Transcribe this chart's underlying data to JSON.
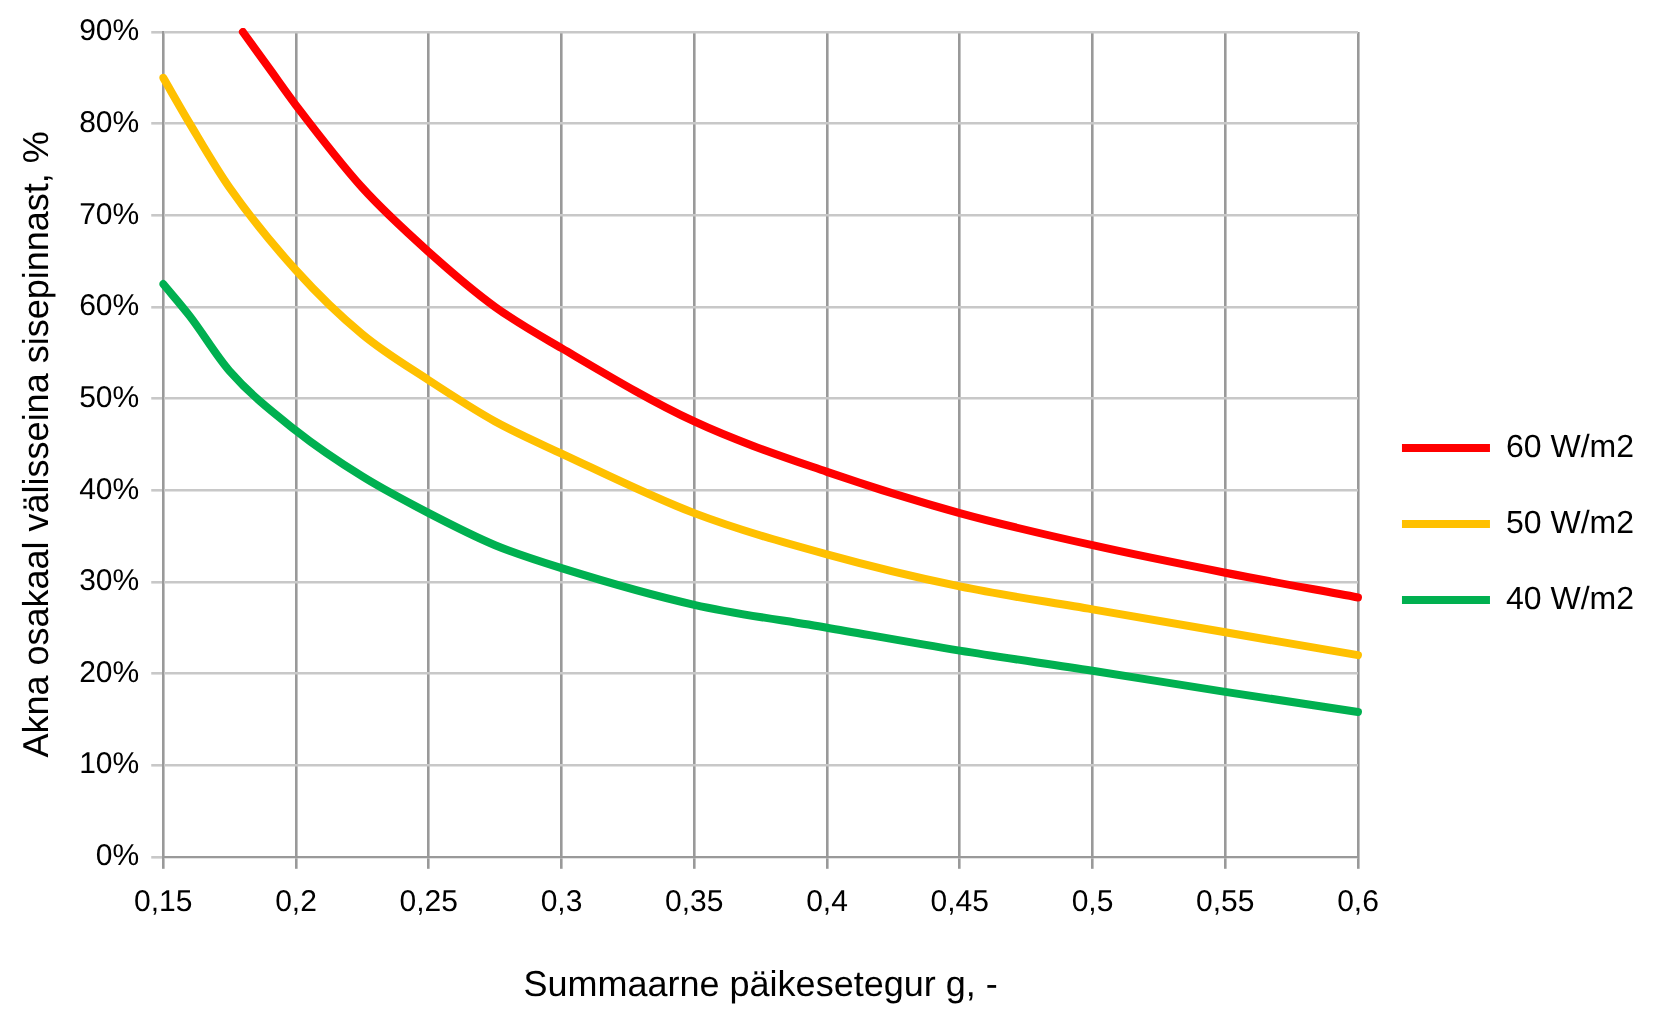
{
  "chart_data": {
    "type": "line",
    "xlabel": "Summaarne päikesetegur g, -",
    "ylabel": "Akna osakaal välisseina sisepinnast, %",
    "xlim": [
      0.15,
      0.6
    ],
    "xticks": [
      {
        "value": 0.15,
        "label": "0,15"
      },
      {
        "value": 0.2,
        "label": "0,2"
      },
      {
        "value": 0.25,
        "label": "0,25"
      },
      {
        "value": 0.3,
        "label": "0,3"
      },
      {
        "value": 0.35,
        "label": "0,35"
      },
      {
        "value": 0.4,
        "label": "0,4"
      },
      {
        "value": 0.45,
        "label": "0,45"
      },
      {
        "value": 0.5,
        "label": "0,5"
      },
      {
        "value": 0.55,
        "label": "0,55"
      },
      {
        "value": 0.6,
        "label": "0,6"
      }
    ],
    "ylim": [
      0,
      90
    ],
    "yticks": [
      {
        "value": 0,
        "label": "0%"
      },
      {
        "value": 10,
        "label": "10%"
      },
      {
        "value": 20,
        "label": "20%"
      },
      {
        "value": 30,
        "label": "30%"
      },
      {
        "value": 40,
        "label": "40%"
      },
      {
        "value": 50,
        "label": "50%"
      },
      {
        "value": 60,
        "label": "60%"
      },
      {
        "value": 70,
        "label": "70%"
      },
      {
        "value": 80,
        "label": "80%"
      },
      {
        "value": 90,
        "label": "90%"
      }
    ],
    "grid": true,
    "legend": "right",
    "marker": "none",
    "line_style": "solid",
    "series": [
      {
        "name": "60 W/m2",
        "color": "#ff0000",
        "x": [
          0.18,
          0.19,
          0.2,
          0.225,
          0.25,
          0.275,
          0.3,
          0.35,
          0.4,
          0.45,
          0.5,
          0.55,
          0.6
        ],
        "values": [
          90,
          86,
          82,
          73,
          66,
          60,
          55.5,
          47.5,
          42,
          37.5,
          34,
          31,
          28.3
        ]
      },
      {
        "name": "50 W/m2",
        "color": "#ffc000",
        "x": [
          0.15,
          0.16,
          0.175,
          0.2,
          0.225,
          0.25,
          0.275,
          0.3,
          0.35,
          0.4,
          0.45,
          0.5,
          0.55,
          0.6
        ],
        "values": [
          85,
          80,
          73,
          64,
          57,
          52,
          47.5,
          44,
          37.5,
          33,
          29.5,
          27,
          24.5,
          22
        ]
      },
      {
        "name": "40 W/m2",
        "color": "#00b050",
        "x": [
          0.15,
          0.16,
          0.175,
          0.2,
          0.225,
          0.25,
          0.275,
          0.3,
          0.35,
          0.4,
          0.45,
          0.5,
          0.55,
          0.6
        ],
        "values": [
          62.5,
          59,
          53,
          46.5,
          41.5,
          37.5,
          34,
          31.5,
          27.5,
          25,
          22.5,
          20.3,
          18,
          15.8
        ]
      }
    ]
  }
}
